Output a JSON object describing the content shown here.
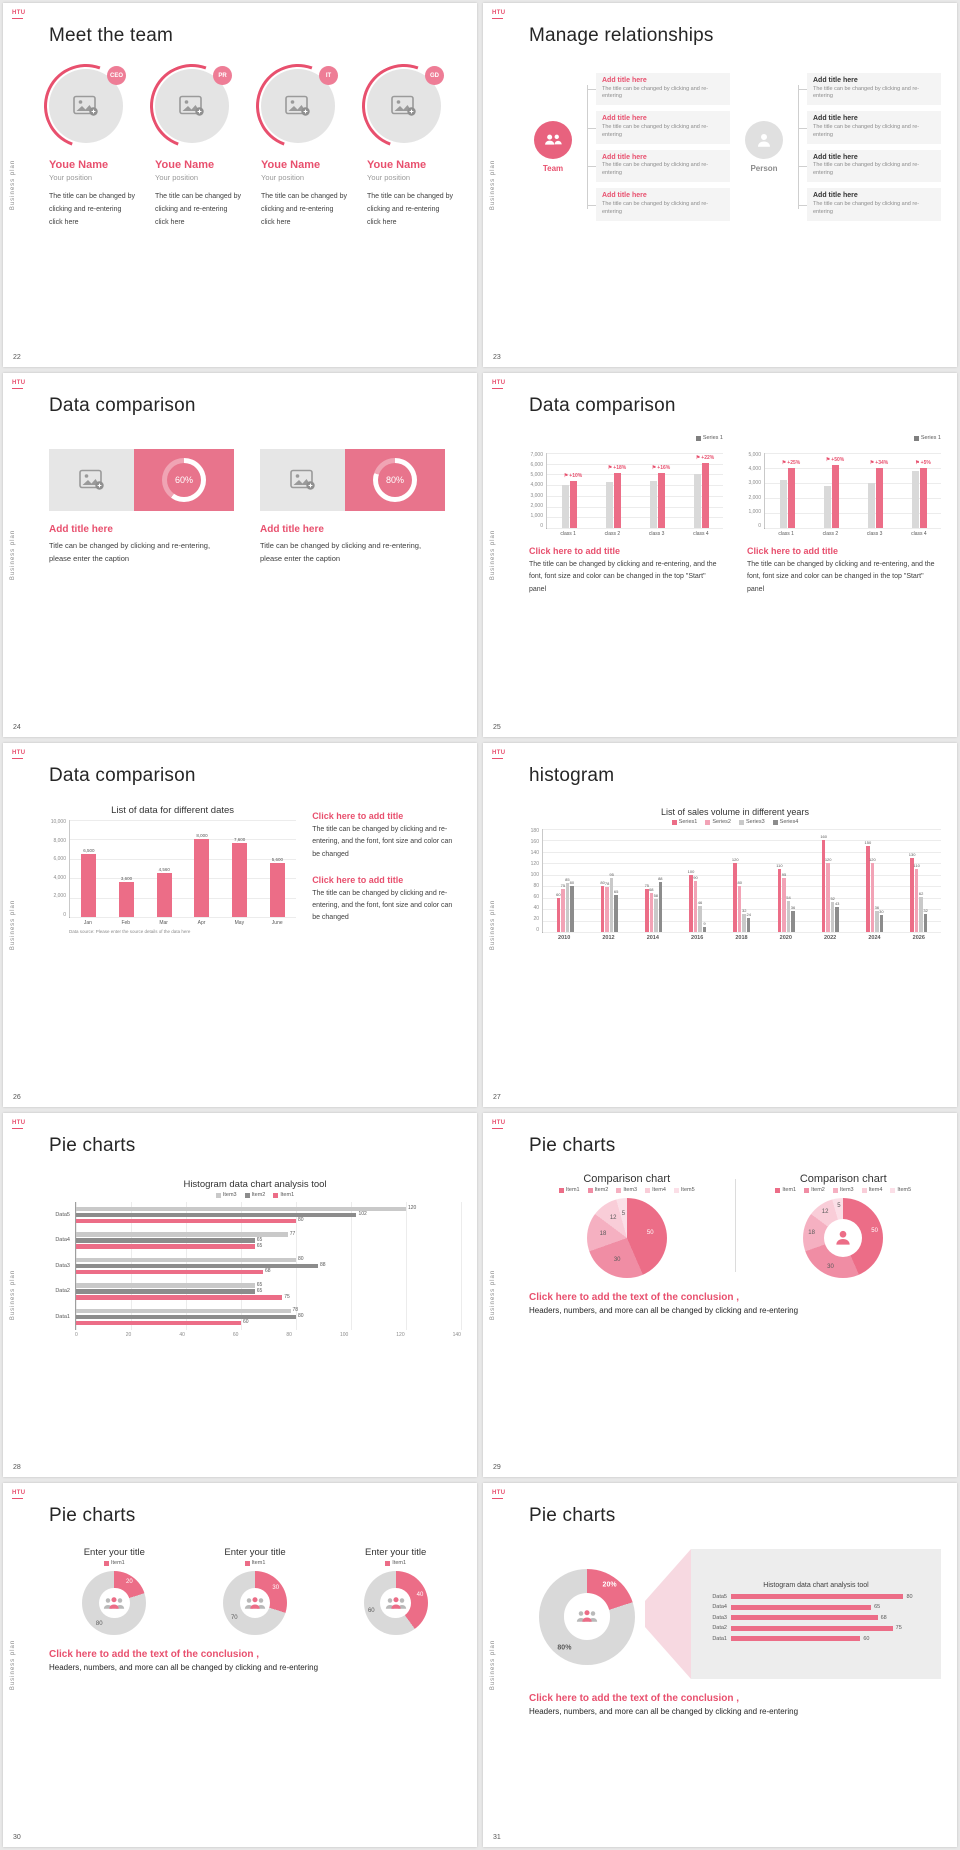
{
  "page": {
    "background": "#e8e8e8",
    "card_background": "#ffffff",
    "accent": "#e8506e"
  },
  "common": {
    "logo": "HTU",
    "side_text": "Business plan"
  },
  "slides": {
    "s22": {
      "num": "22",
      "title": "Meet the team",
      "members": [
        {
          "badge": "CEO",
          "name": "Youe Name",
          "position": "Your position",
          "desc": "The title can be changed by clicking and re-entering click here"
        },
        {
          "badge": "PR",
          "name": "Youe Name",
          "position": "Your position",
          "desc": "The title can be changed by clicking and re-entering click here"
        },
        {
          "badge": "IT",
          "name": "Youe Name",
          "position": "Your position",
          "desc": "The title can be changed by clicking and re-entering click here"
        },
        {
          "badge": "GD",
          "name": "Youe Name",
          "position": "Your position",
          "desc": "The title can be changed by clicking and re-entering click here"
        }
      ]
    },
    "s23": {
      "num": "23",
      "title": "Manage relationships",
      "team_label": "Team",
      "person_label": "Person",
      "team_items": [
        {
          "title": "Add title here",
          "desc": "The title can be changed by clicking and re-entering"
        },
        {
          "title": "Add title here",
          "desc": "The title can be changed by clicking and re-entering"
        },
        {
          "title": "Add title here",
          "desc": "The title can be changed by clicking and re-entering"
        },
        {
          "title": "Add title here",
          "desc": "The title can be changed by clicking and re-entering"
        }
      ],
      "person_items": [
        {
          "title": "Add title here",
          "desc": "The title can be changed by clicking and re-entering"
        },
        {
          "title": "Add title here",
          "desc": "The title can be changed by clicking and re-entering"
        },
        {
          "title": "Add title here",
          "desc": "The title can be changed by clicking and re-entering"
        },
        {
          "title": "Add title here",
          "desc": "The title can be changed by clicking and re-entering"
        }
      ]
    },
    "s24": {
      "num": "24",
      "title": "Data comparison",
      "cards": [
        {
          "title": "Add title here",
          "desc": "Title can be changed by clicking and re-entering, please enter the caption"
        },
        {
          "title": "Add title here",
          "desc": "Title can be changed by clicking and re-entering, please enter the caption"
        }
      ]
    },
    "s25": {
      "num": "25",
      "title": "Data comparison",
      "blocks": [
        {
          "cta": "Click here to add title",
          "desc": "The title can be changed by clicking and re-entering, and the font, font size and color can be changed in the top \"Start\" panel"
        },
        {
          "cta": "Click here to add title",
          "desc": "The title can be changed by clicking and re-entering, and the font, font size and color can be changed in the top \"Start\" panel"
        }
      ]
    },
    "s26": {
      "num": "26",
      "title": "Data comparison",
      "blocks": [
        {
          "cta": "Click here to add title",
          "desc": "The title can be changed by clicking and re-entering, and the font, font size and color can be changed"
        },
        {
          "cta": "Click here to add title",
          "desc": "The title can be changed by clicking and re-entering, and the font, font size and color can be changed"
        }
      ]
    },
    "s27": {
      "num": "27",
      "title": "histogram"
    },
    "s28": {
      "num": "28",
      "title": "Pie charts"
    },
    "s29": {
      "num": "29",
      "title": "Pie charts",
      "conclusion_title": "Click here to add the text of the conclusion ,",
      "conclusion_desc": "Headers, numbers, and more can all be changed by clicking and re-entering"
    },
    "s30": {
      "num": "30",
      "title": "Pie charts",
      "conclusion_title": "Click here to add the text of the conclusion ,",
      "conclusion_desc": "Headers, numbers, and more can all be changed by clicking and re-entering"
    },
    "s31": {
      "num": "31",
      "title": "Pie charts",
      "conclusion_title": "Click here to add the text of the conclusion ,",
      "conclusion_desc": "Headers, numbers, and more can all be changed by clicking and re-entering"
    }
  },
  "chart_data": [
    {
      "id": "s24a",
      "type": "ring",
      "value": 60,
      "label": "60%"
    },
    {
      "id": "s24b",
      "type": "ring",
      "value": 80,
      "label": "80%"
    },
    {
      "id": "s25a",
      "type": "column",
      "legend": [
        {
          "name": "Series 1",
          "color": "#7f7f7f"
        }
      ],
      "yticks": [
        "7,000",
        "6,000",
        "5,000",
        "4,000",
        "3,000",
        "2,000",
        "1,000",
        "0"
      ],
      "ymax": 7000,
      "categories": [
        "class 1",
        "class 2",
        "class 3",
        "class 4"
      ],
      "series": [
        {
          "name": "previous",
          "color": "#d9d9d9",
          "values": [
            4000,
            4300,
            4400,
            5000
          ]
        },
        {
          "name": "Series 1",
          "color": "#ec6d87",
          "values": [
            4400,
            5100,
            5100,
            6100
          ]
        }
      ],
      "annotations": [
        "+10%",
        "+18%",
        "+16%",
        "+22%"
      ]
    },
    {
      "id": "s25b",
      "type": "column",
      "legend": [
        {
          "name": "Series 1",
          "color": "#7f7f7f"
        }
      ],
      "yticks": [
        "5,000",
        "4,000",
        "3,000",
        "2,000",
        "1,000",
        "0"
      ],
      "ymax": 5000,
      "categories": [
        "class 1",
        "class 2",
        "class 3",
        "class 4"
      ],
      "series": [
        {
          "name": "previous",
          "color": "#d9d9d9",
          "values": [
            3200,
            2800,
            3000,
            3800
          ]
        },
        {
          "name": "Series 1",
          "color": "#ec6d87",
          "values": [
            4000,
            4200,
            4000,
            4000
          ]
        }
      ],
      "annotations": [
        "+25%",
        "+50%",
        "+34%",
        "+5%"
      ]
    },
    {
      "id": "s26",
      "type": "column",
      "title": "List of data for different dates",
      "yticks": [
        "10,000",
        "8,000",
        "6,000",
        "4,000",
        "2,000",
        "0"
      ],
      "ymax": 10000,
      "categories": [
        "Jan",
        "Feb",
        "Mar",
        "Apr",
        "May",
        "June"
      ],
      "series": [
        {
          "name": "Data",
          "color": "#ec6d87",
          "values": [
            6500,
            3600,
            4560,
            8000,
            7600,
            5600
          ],
          "labels": [
            "6,500",
            "3,600",
            "4,560",
            "8,000",
            "7,600",
            "5,600"
          ]
        }
      ],
      "footnote": "Data source: Please enter the source details of the data here"
    },
    {
      "id": "s27",
      "type": "column",
      "title": "List of sales volume in different years",
      "legend": [
        {
          "name": "Series1",
          "color": "#ec6d87"
        },
        {
          "name": "Series2",
          "color": "#f2a3b6"
        },
        {
          "name": "Series3",
          "color": "#c9c9c9"
        },
        {
          "name": "Series4",
          "color": "#8c8c8c"
        }
      ],
      "yticks": [
        "180",
        "160",
        "140",
        "120",
        "100",
        "80",
        "60",
        "40",
        "20",
        "0"
      ],
      "ymax": 180,
      "categories": [
        "2010",
        "2012",
        "2014",
        "2016",
        "2018",
        "2020",
        "2022",
        "2024",
        "2026"
      ],
      "series": [
        {
          "name": "Series1",
          "color": "#ec6d87",
          "values": [
            60,
            80,
            75,
            100,
            120,
            110,
            160,
            150,
            130
          ],
          "labels": [
            "60",
            "80",
            "75",
            "100",
            "120",
            "110",
            "160",
            "150",
            "130"
          ]
        },
        {
          "name": "Series2",
          "color": "#f2a3b6",
          "values": [
            75,
            78,
            68,
            90,
            80,
            95,
            120,
            120,
            110
          ],
          "labels": [
            "75",
            "78",
            "68",
            "90",
            "80",
            "95",
            "120",
            "120",
            "110"
          ]
        },
        {
          "name": "Series3",
          "color": "#c9c9c9",
          "values": [
            85,
            95,
            58,
            46,
            32,
            54,
            52,
            36,
            62
          ],
          "labels": [
            "85",
            "95",
            "58",
            "46",
            "32",
            "54",
            "52",
            "36",
            "62"
          ]
        },
        {
          "name": "Series4",
          "color": "#8c8c8c",
          "values": [
            80,
            65,
            88,
            9,
            24,
            36,
            43,
            30,
            32
          ],
          "labels": [
            "80",
            "65",
            "88",
            "9",
            "24",
            "36",
            "43",
            "30",
            "32"
          ]
        }
      ]
    },
    {
      "id": "s28",
      "type": "barh",
      "title": "Histogram data chart analysis tool",
      "legend": [
        {
          "name": "Item3",
          "color": "#c9c9c9"
        },
        {
          "name": "Item2",
          "color": "#8c8c8c"
        },
        {
          "name": "Item1",
          "color": "#ec6d87"
        }
      ],
      "xticks": [
        "0",
        "20",
        "40",
        "60",
        "80",
        "100",
        "120",
        "140"
      ],
      "xmax": 140,
      "categories": [
        "Data5",
        "Data4",
        "Data3",
        "Data2",
        "Data1"
      ],
      "series": [
        {
          "name": "Item3",
          "color": "#c9c9c9",
          "values": [
            120,
            77,
            80,
            65,
            78
          ]
        },
        {
          "name": "Item2",
          "color": "#8c8c8c",
          "values": [
            102,
            65,
            88,
            65,
            80
          ]
        },
        {
          "name": "Item1",
          "color": "#ec6d87",
          "values": [
            80,
            65,
            68,
            75,
            60
          ]
        }
      ]
    },
    {
      "id": "s29a",
      "type": "pie",
      "title": "Comparison chart",
      "legend": [
        {
          "name": "Item1",
          "color": "#ec6d87"
        },
        {
          "name": "Item2",
          "color": "#f08da4"
        },
        {
          "name": "Item3",
          "color": "#f5b0c1"
        },
        {
          "name": "Item4",
          "color": "#f9cdd8"
        },
        {
          "name": "Item5",
          "color": "#fbdfe7"
        }
      ],
      "values": [
        50,
        30,
        18,
        12,
        5
      ],
      "labels": [
        "50",
        "30",
        "18",
        "12",
        "5"
      ],
      "colors": [
        "#ec6d87",
        "#f08da4",
        "#f5b0c1",
        "#f9cdd8",
        "#fbdfe7"
      ]
    },
    {
      "id": "s29b",
      "type": "donut",
      "title": "Comparison chart",
      "legend": [
        {
          "name": "Item1",
          "color": "#ec6d87"
        },
        {
          "name": "Item2",
          "color": "#f08da4"
        },
        {
          "name": "Item3",
          "color": "#f5b0c1"
        },
        {
          "name": "Item4",
          "color": "#f9cdd8"
        },
        {
          "name": "Item5",
          "color": "#fbdfe7"
        }
      ],
      "values": [
        50,
        30,
        18,
        12,
        5
      ],
      "labels": [
        "50",
        "30",
        "18",
        "12",
        "5"
      ],
      "colors": [
        "#ec6d87",
        "#f08da4",
        "#f5b0c1",
        "#f9cdd8",
        "#fbdfe7"
      ],
      "icon": "person"
    },
    {
      "id": "s30a",
      "type": "donut",
      "title": "Enter your title",
      "legend": [
        {
          "name": "Item1",
          "color": "#ec6d87"
        }
      ],
      "values": [
        20,
        80
      ],
      "labels": [
        "20",
        "80"
      ],
      "colors": [
        "#ec6d87",
        "#d9d9d9"
      ],
      "icon": "people"
    },
    {
      "id": "s30b",
      "type": "donut",
      "title": "Enter your title",
      "legend": [
        {
          "name": "Item1",
          "color": "#ec6d87"
        }
      ],
      "values": [
        30,
        70
      ],
      "labels": [
        "30",
        "70"
      ],
      "colors": [
        "#ec6d87",
        "#d9d9d9"
      ],
      "icon": "people"
    },
    {
      "id": "s30c",
      "type": "donut",
      "title": "Enter your title",
      "legend": [
        {
          "name": "Item1",
          "color": "#ec6d87"
        }
      ],
      "values": [
        40,
        60
      ],
      "labels": [
        "40",
        "60"
      ],
      "colors": [
        "#ec6d87",
        "#d9d9d9"
      ],
      "icon": "people"
    },
    {
      "id": "s31",
      "type": "donut",
      "values": [
        20,
        80
      ],
      "labels": [
        "20%",
        "80%"
      ],
      "colors": [
        "#ec6d87",
        "#d9d9d9"
      ],
      "icon": "people"
    },
    {
      "id": "s31bar",
      "type": "minibar",
      "title": "Histogram data chart analysis tool",
      "categories": [
        "Data5",
        "Data4",
        "Data3",
        "Data2",
        "Data1"
      ],
      "values": [
        80,
        65,
        68,
        75,
        60
      ],
      "xmax": 90,
      "color": "#ec6d87"
    }
  ]
}
